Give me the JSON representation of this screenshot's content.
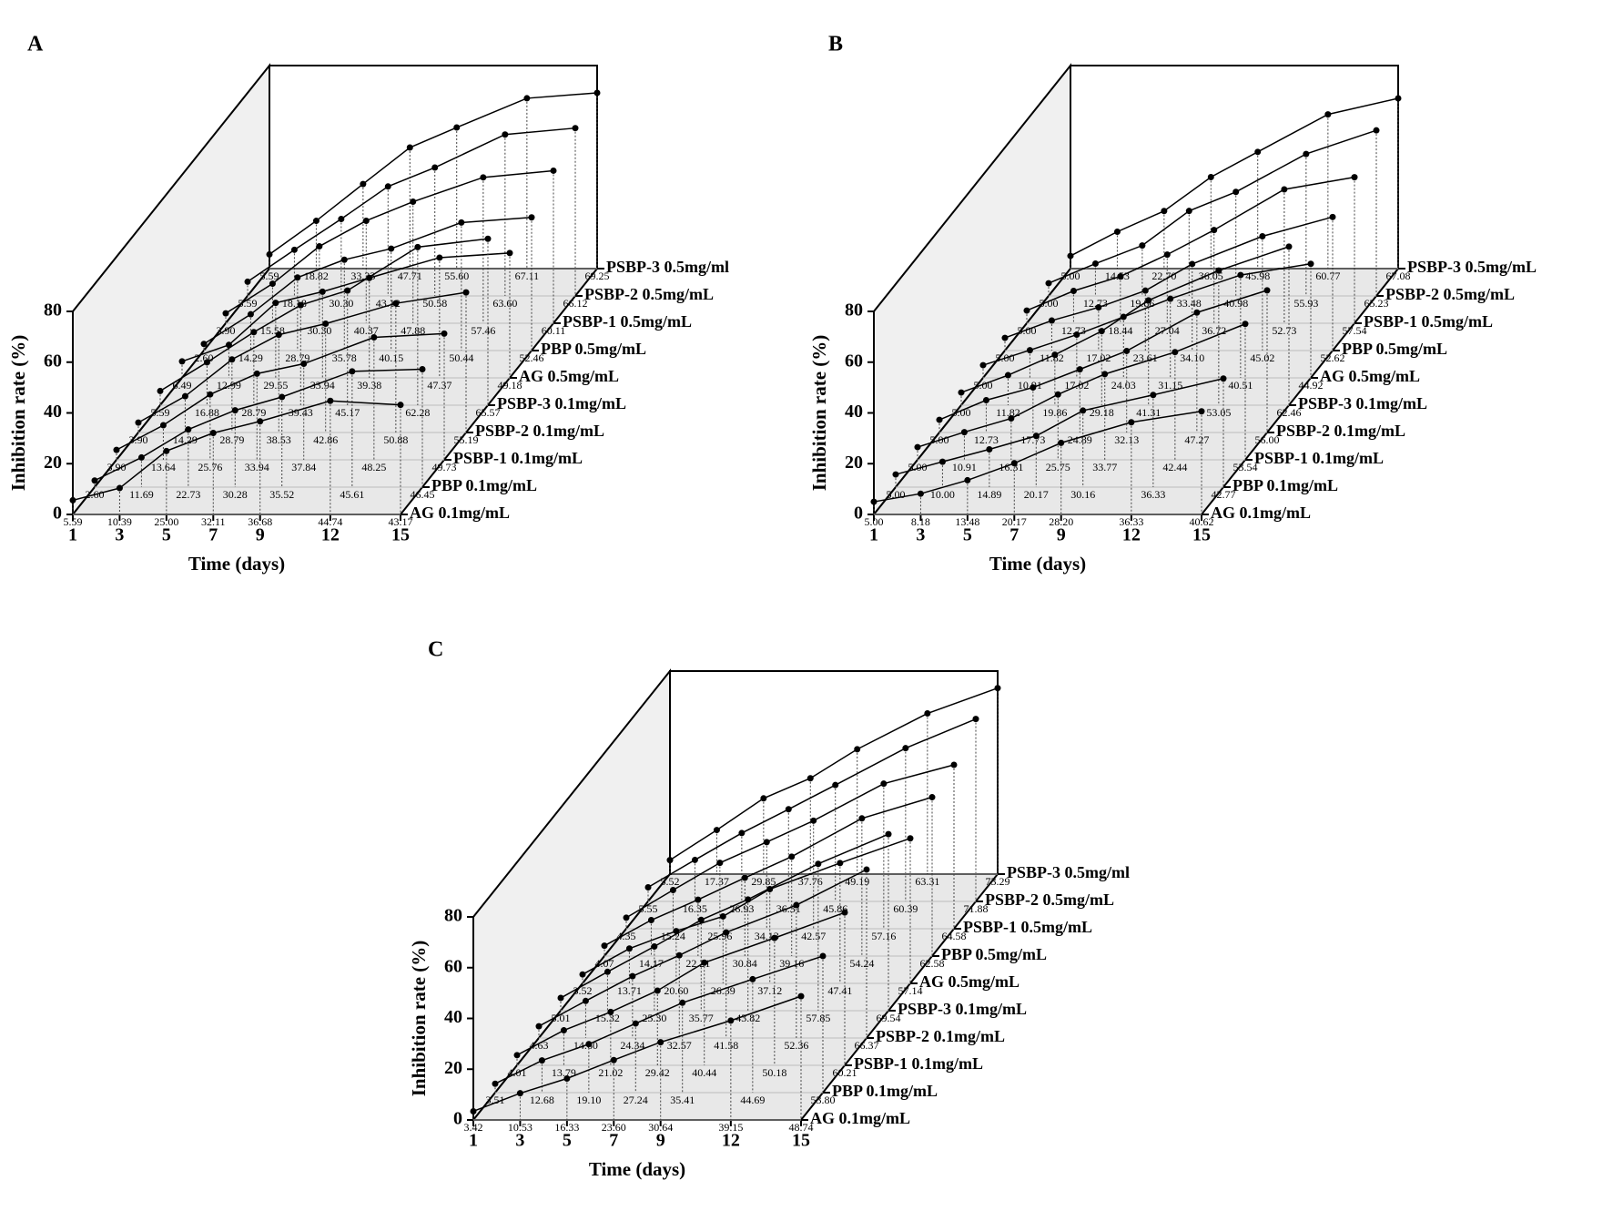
{
  "chart_data": [
    {
      "type": "line",
      "panel_label": "A",
      "xlabel": "Time (days)",
      "ylabel": "Inhibition rate (%)",
      "color": "#000000",
      "x": [
        1,
        3,
        5,
        7,
        9,
        12,
        15
      ],
      "xlim": [
        1,
        15
      ],
      "xticks": [
        1,
        3,
        5,
        7,
        9,
        12,
        15
      ],
      "ylim": [
        0,
        80
      ],
      "yticks": [
        0,
        20,
        40,
        60,
        80
      ],
      "series": [
        {
          "name": "AG 0.1mg/mL",
          "values": [
            5.59,
            10.39,
            25.0,
            32.11,
            36.68,
            44.74,
            43.17
          ],
          "value_labels": [
            "5.59",
            "10.39",
            "25.00",
            "32.11",
            "36.68",
            "44.74",
            "43.17"
          ]
        },
        {
          "name": "PBP 0.1mg/mL",
          "values": [
            2.6,
            11.69,
            22.73,
            30.28,
            35.52,
            45.61,
            46.45
          ],
          "value_labels": [
            "2.60",
            "11.69",
            "22.73",
            "30.28",
            "35.52",
            "45.61",
            "46.45"
          ]
        },
        {
          "name": "PSBP-1 0.1mg/mL",
          "values": [
            3.9,
            13.64,
            25.76,
            33.94,
            37.84,
            48.25,
            49.73
          ],
          "value_labels": [
            "3.90",
            "13.64",
            "25.76",
            "33.94",
            "37.84",
            "48.25",
            "49.73"
          ]
        },
        {
          "name": "PSBP-2 0.1mg/mL",
          "values": [
            3.9,
            14.29,
            28.79,
            38.53,
            42.86,
            50.88,
            55.19
          ],
          "value_labels": [
            "3.90",
            "14.29",
            "28.79",
            "38.53",
            "42.86",
            "50.88",
            "55.19"
          ]
        },
        {
          "name": "PSBP-3 0.1mg/mL",
          "values": [
            5.59,
            16.88,
            28.79,
            39.43,
            45.17,
            62.28,
            65.57
          ],
          "value_labels": [
            "5.59",
            "16.88",
            "28.79",
            "39.43",
            "45.17",
            "62.28",
            "65.57"
          ]
        },
        {
          "name": "AG 0.5mg/mL",
          "values": [
            6.49,
            12.99,
            29.55,
            33.94,
            39.38,
            47.37,
            49.18
          ],
          "value_labels": [
            "6.49",
            "12.99",
            "29.55",
            "33.94",
            "39.38",
            "47.37",
            "49.18"
          ]
        },
        {
          "name": "PBP 0.5mg/mL",
          "values": [
            2.6,
            14.29,
            28.79,
            35.78,
            40.15,
            50.44,
            52.46
          ],
          "value_labels": [
            "2.60",
            "14.29",
            "28.79",
            "35.78",
            "40.15",
            "50.44",
            "52.46"
          ]
        },
        {
          "name": "PSBP-1 0.5mg/mL",
          "values": [
            3.9,
            15.58,
            30.3,
            40.37,
            47.88,
            57.46,
            60.11
          ],
          "value_labels": [
            "3.90",
            "15.58",
            "30.30",
            "40.37",
            "47.88",
            "57.46",
            "60.11"
          ]
        },
        {
          "name": "PSBP-2 0.5mg/mL",
          "values": [
            5.59,
            18.18,
            30.3,
            43.12,
            50.58,
            63.6,
            66.12
          ],
          "value_labels": [
            "5.59",
            "18.18",
            "30.30",
            "43.12",
            "50.58",
            "63.60",
            "66.12"
          ]
        },
        {
          "name": "PSBP-3 0.5mg/ml",
          "values": [
            5.59,
            18.82,
            33.33,
            47.71,
            55.6,
            67.11,
            69.25
          ],
          "value_labels": [
            "5.59",
            "18.82",
            "33.33",
            "47.71",
            "55.60",
            "67.11",
            "69.25"
          ]
        }
      ]
    },
    {
      "type": "line",
      "panel_label": "B",
      "xlabel": "Time (days)",
      "ylabel": "Inhibition rate (%)",
      "color": "#000000",
      "x": [
        1,
        3,
        5,
        7,
        9,
        12,
        15
      ],
      "xlim": [
        1,
        15
      ],
      "xticks": [
        1,
        3,
        5,
        7,
        9,
        12,
        15
      ],
      "ylim": [
        0,
        80
      ],
      "yticks": [
        0,
        20,
        40,
        60,
        80
      ],
      "series": [
        {
          "name": "AG 0.1mg/mL",
          "values": [
            5.0,
            8.18,
            13.48,
            20.17,
            28.2,
            36.33,
            40.62
          ],
          "value_labels": [
            "5.00",
            "8.18",
            "13.48",
            "20.17",
            "28.20",
            "36.33",
            "40.62"
          ]
        },
        {
          "name": "PBP 0.1mg/mL",
          "values": [
            5.0,
            10.0,
            14.89,
            20.17,
            30.16,
            36.33,
            42.77
          ],
          "value_labels": [
            "5.00",
            "10.00",
            "14.89",
            "20.17",
            "30.16",
            "36.33",
            "42.77"
          ]
        },
        {
          "name": "PSBP-1 0.1mg/mL",
          "values": [
            5.0,
            10.91,
            16.31,
            25.75,
            33.77,
            42.44,
            53.54
          ],
          "value_labels": [
            "5.00",
            "10.91",
            "16.31",
            "25.75",
            "33.77",
            "42.44",
            "53.54"
          ]
        },
        {
          "name": "PSBP-2 0.1mg/mL",
          "values": [
            5.0,
            12.73,
            17.73,
            24.89,
            32.13,
            47.27,
            56.0
          ],
          "value_labels": [
            "5.00",
            "12.73",
            "17.73",
            "24.89",
            "32.13",
            "47.27",
            "56.00"
          ]
        },
        {
          "name": "PSBP-3 0.1mg/mL",
          "values": [
            5.0,
            11.82,
            19.86,
            29.18,
            41.31,
            53.05,
            62.46
          ],
          "value_labels": [
            "5.00",
            "11.82",
            "19.86",
            "29.18",
            "41.31",
            "53.05",
            "62.46"
          ]
        },
        {
          "name": "AG 0.5mg/mL",
          "values": [
            5.0,
            10.91,
            17.02,
            24.03,
            31.15,
            40.51,
            44.92
          ],
          "value_labels": [
            "5.00",
            "10.91",
            "17.02",
            "24.03",
            "31.15",
            "40.51",
            "44.92"
          ]
        },
        {
          "name": "PBP 0.5mg/mL",
          "values": [
            5.0,
            11.82,
            17.02,
            23.61,
            34.1,
            45.02,
            52.62
          ],
          "value_labels": [
            "5.00",
            "11.82",
            "17.02",
            "23.61",
            "34.10",
            "45.02",
            "52.62"
          ]
        },
        {
          "name": "PSBP-1 0.5mg/mL",
          "values": [
            5.0,
            12.73,
            18.44,
            27.04,
            36.72,
            52.73,
            57.54
          ],
          "value_labels": [
            "5.00",
            "12.73",
            "18.44",
            "27.04",
            "36.72",
            "52.73",
            "57.54"
          ]
        },
        {
          "name": "PSBP-2 0.5mg/mL",
          "values": [
            5.0,
            12.73,
            19.86,
            33.48,
            40.98,
            55.93,
            65.23
          ],
          "value_labels": [
            "5.00",
            "12.73",
            "19.86",
            "33.48",
            "40.98",
            "55.93",
            "65.23"
          ]
        },
        {
          "name": "PSBP-3 0.5mg/mL",
          "values": [
            5.0,
            14.53,
            22.7,
            36.05,
            45.98,
            60.77,
            67.08
          ],
          "value_labels": [
            "5.00",
            "14.53",
            "22.70",
            "36.05",
            "45.98",
            "60.77",
            "67.08"
          ]
        }
      ]
    },
    {
      "type": "line",
      "panel_label": "C",
      "xlabel": "Time (days)",
      "ylabel": "Inhibition rate (%)",
      "color": "#000000",
      "x": [
        1,
        3,
        5,
        7,
        9,
        12,
        15
      ],
      "xlim": [
        1,
        15
      ],
      "xticks": [
        1,
        3,
        5,
        7,
        9,
        12,
        15
      ],
      "ylim": [
        0,
        80
      ],
      "yticks": [
        0,
        20,
        40,
        60,
        80
      ],
      "series": [
        {
          "name": "AG 0.1mg/mL",
          "values": [
            3.42,
            10.53,
            16.33,
            23.6,
            30.64,
            39.15,
            48.74
          ],
          "value_labels": [
            "3.42",
            "10.53",
            "16.33",
            "23.60",
            "30.64",
            "39.15",
            "48.74"
          ]
        },
        {
          "name": "PBP 0.1mg/mL",
          "values": [
            3.51,
            12.68,
            19.1,
            27.24,
            35.41,
            44.69,
            53.8
          ],
          "value_labels": [
            "3.51",
            "12.68",
            "19.10",
            "27.24",
            "35.41",
            "44.69",
            "53.80"
          ]
        },
        {
          "name": "PSBP-1 0.1mg/mL",
          "values": [
            4.01,
            13.79,
            21.02,
            29.42,
            40.44,
            50.18,
            60.21
          ],
          "value_labels": [
            "4.01",
            "13.79",
            "21.02",
            "29.42",
            "40.44",
            "50.18",
            "60.21"
          ]
        },
        {
          "name": "PSBP-2 0.1mg/mL",
          "values": [
            4.63,
            14.6,
            24.34,
            32.57,
            41.58,
            52.36,
            66.37
          ],
          "value_labels": [
            "4.63",
            "14.60",
            "24.34",
            "32.57",
            "41.58",
            "52.36",
            "66.37"
          ]
        },
        {
          "name": "PSBP-3 0.1mg/mL",
          "values": [
            5.01,
            15.32,
            25.3,
            35.77,
            43.82,
            57.85,
            69.54
          ],
          "value_labels": [
            "5.01",
            "15.32",
            "25.30",
            "35.77",
            "43.82",
            "57.85",
            "69.54"
          ]
        },
        {
          "name": "AG 0.5mg/mL",
          "values": [
            3.52,
            13.71,
            20.6,
            26.39,
            37.12,
            47.41,
            57.14
          ],
          "value_labels": [
            "3.52",
            "13.71",
            "20.60",
            "26.39",
            "37.12",
            "47.41",
            "57.14"
          ]
        },
        {
          "name": "PBP 0.5mg/mL",
          "values": [
            4.07,
            14.17,
            22.21,
            30.84,
            39.16,
            54.24,
            62.58
          ],
          "value_labels": [
            "4.07",
            "14.17",
            "22.21",
            "30.84",
            "39.16",
            "54.24",
            "62.58"
          ]
        },
        {
          "name": "PSBP-1 0.5mg/mL",
          "values": [
            4.35,
            15.24,
            25.96,
            34.13,
            42.57,
            57.16,
            64.58
          ],
          "value_labels": [
            "4.35",
            "15.24",
            "25.96",
            "34.13",
            "42.57",
            "57.16",
            "64.58"
          ]
        },
        {
          "name": "PSBP-2 0.5mg/mL",
          "values": [
            5.55,
            16.35,
            26.93,
            36.31,
            45.86,
            60.39,
            71.88
          ],
          "value_labels": [
            "5.55",
            "16.35",
            "26.93",
            "36.31",
            "45.86",
            "60.39",
            "71.88"
          ]
        },
        {
          "name": "PSBP-3 0.5mg/ml",
          "values": [
            5.52,
            17.37,
            29.85,
            37.76,
            49.19,
            63.31,
            73.29
          ],
          "value_labels": [
            "5.52",
            "17.37",
            "29.85",
            "37.76",
            "49.19",
            "63.31",
            "73.29"
          ]
        }
      ]
    }
  ]
}
